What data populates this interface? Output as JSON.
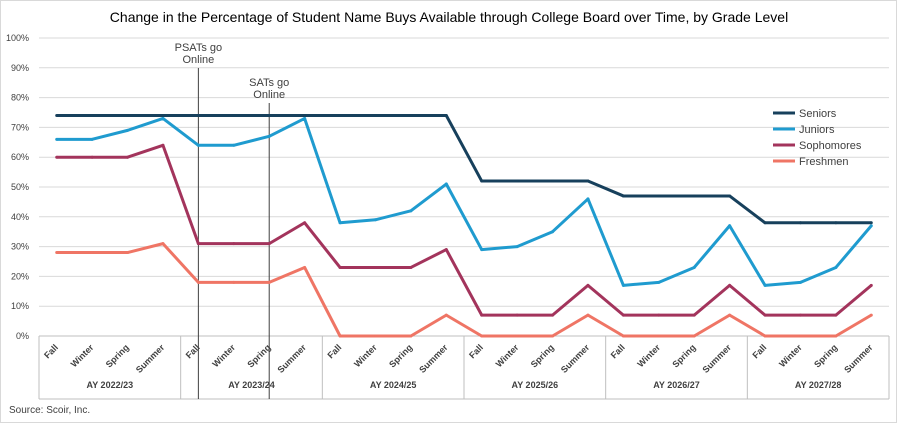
{
  "chart_data": {
    "type": "line",
    "title": "Change in the Percentage of Student Name Buys Available through College Board over Time, by Grade Level",
    "source": "Source: Scoir, Inc.",
    "ylim": [
      0,
      100
    ],
    "yticks": [
      "0%",
      "10%",
      "20%",
      "30%",
      "40%",
      "50%",
      "60%",
      "70%",
      "80%",
      "90%",
      "100%"
    ],
    "grid": true,
    "legend_position": "right",
    "groups": [
      {
        "label": "AY 2022/23",
        "categories": [
          "Fall",
          "Winter",
          "Spring",
          "Summer"
        ]
      },
      {
        "label": "AY 2023/24",
        "categories": [
          "Fall",
          "Winter",
          "Spring",
          "Summer"
        ]
      },
      {
        "label": "AY 2024/25",
        "categories": [
          "Fall",
          "Winter",
          "Spring",
          "Summer"
        ]
      },
      {
        "label": "AY 2025/26",
        "categories": [
          "Fall",
          "Winter",
          "Spring",
          "Summer"
        ]
      },
      {
        "label": "AY 2026/27",
        "categories": [
          "Fall",
          "Winter",
          "Spring",
          "Summer"
        ]
      },
      {
        "label": "AY 2027/28",
        "categories": [
          "Fall",
          "Winter",
          "Spring",
          "Summer"
        ]
      }
    ],
    "series": [
      {
        "name": "Seniors",
        "color": "#17405c",
        "values": [
          74,
          74,
          74,
          74,
          74,
          74,
          74,
          74,
          74,
          74,
          74,
          74,
          52,
          52,
          52,
          52,
          47,
          47,
          47,
          47,
          38,
          38,
          38,
          38
        ]
      },
      {
        "name": "Juniors",
        "color": "#1f9bcf",
        "values": [
          66,
          66,
          69,
          73,
          64,
          64,
          67,
          73,
          38,
          39,
          42,
          51,
          29,
          30,
          35,
          46,
          17,
          18,
          23,
          37,
          17,
          18,
          23,
          37
        ]
      },
      {
        "name": "Sophomores",
        "color": "#a3345c",
        "values": [
          60,
          60,
          60,
          64,
          31,
          31,
          31,
          38,
          23,
          23,
          23,
          29,
          7,
          7,
          7,
          17,
          7,
          7,
          7,
          17,
          7,
          7,
          7,
          17
        ]
      },
      {
        "name": "Freshmen",
        "color": "#ef7565",
        "values": [
          28,
          28,
          28,
          31,
          18,
          18,
          18,
          23,
          0,
          0,
          0,
          7,
          0,
          0,
          0,
          7,
          0,
          0,
          0,
          7,
          0,
          0,
          0,
          7
        ]
      }
    ],
    "annotations": [
      {
        "lines": [
          "PSATs go",
          "Online"
        ],
        "at_index": 4
      },
      {
        "lines": [
          "SATs go",
          "Online"
        ],
        "at_index": 6
      }
    ]
  }
}
